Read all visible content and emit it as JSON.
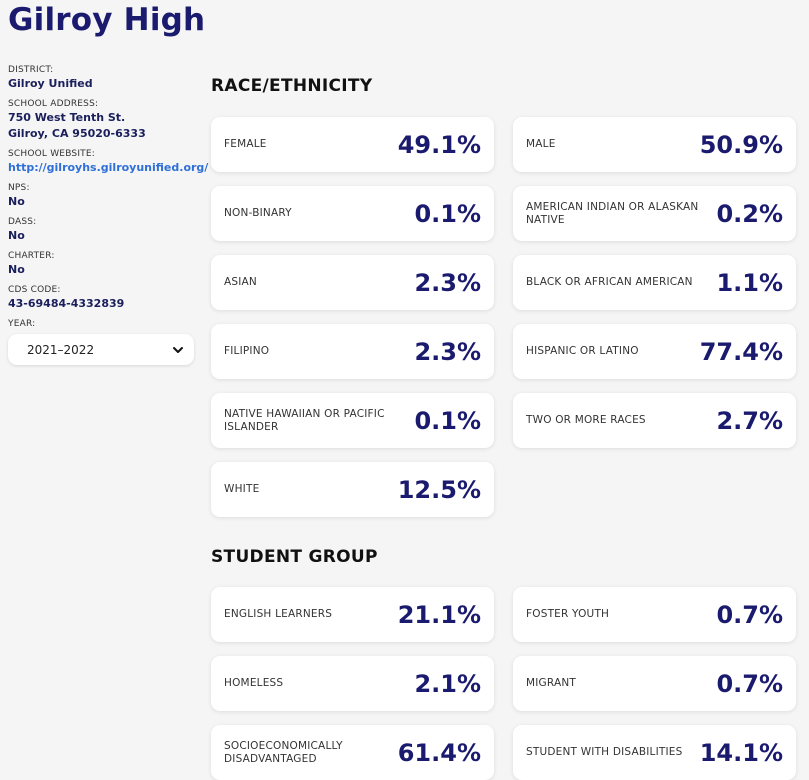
{
  "school": {
    "name": "Gilroy High"
  },
  "sidebar": {
    "district_label": "DISTRICT:",
    "district_value": "Gilroy Unified",
    "address_label": "SCHOOL ADDRESS:",
    "address_line1": "750 West Tenth St.",
    "address_line2": "Gilroy, CA 95020-6333",
    "website_label": "SCHOOL WEBSITE:",
    "website_value": "http://gilroyhs.gilroyunified.org/",
    "nps_label": "NPS:",
    "nps_value": "No",
    "dass_label": "DASS:",
    "dass_value": "No",
    "charter_label": "CHARTER:",
    "charter_value": "No",
    "cds_label": "CDS CODE:",
    "cds_value": "43-69484-4332839",
    "year_label": "YEAR:",
    "year_value": "2021–2022"
  },
  "race": {
    "title": "RACE/ETHNICITY",
    "cards": [
      {
        "label": "FEMALE",
        "value": "49.1%"
      },
      {
        "label": "MALE",
        "value": "50.9%"
      },
      {
        "label": "NON-BINARY",
        "value": "0.1%"
      },
      {
        "label": "AMERICAN INDIAN OR ALASKAN NATIVE",
        "value": "0.2%"
      },
      {
        "label": "ASIAN",
        "value": "2.3%"
      },
      {
        "label": "BLACK OR AFRICAN AMERICAN",
        "value": "1.1%"
      },
      {
        "label": "FILIPINO",
        "value": "2.3%"
      },
      {
        "label": "HISPANIC OR LATINO",
        "value": "77.4%"
      },
      {
        "label": "NATIVE HAWAIIAN OR PACIFIC ISLANDER",
        "value": "0.1%"
      },
      {
        "label": "TWO OR MORE RACES",
        "value": "2.7%"
      },
      {
        "label": "WHITE",
        "value": "12.5%"
      }
    ]
  },
  "groups": {
    "title": "STUDENT GROUP",
    "cards": [
      {
        "label": "ENGLISH LEARNERS",
        "value": "21.1%"
      },
      {
        "label": "FOSTER YOUTH",
        "value": "0.7%"
      },
      {
        "label": "HOMELESS",
        "value": "2.1%"
      },
      {
        "label": "MIGRANT",
        "value": "0.7%"
      },
      {
        "label": "SOCIOECONOMICALLY DISADVANTAGED",
        "value": "61.4%"
      },
      {
        "label": "STUDENT WITH DISABILITIES",
        "value": "14.1%"
      }
    ]
  },
  "icons": {
    "year_dropdown": "chevron-down-icon"
  }
}
